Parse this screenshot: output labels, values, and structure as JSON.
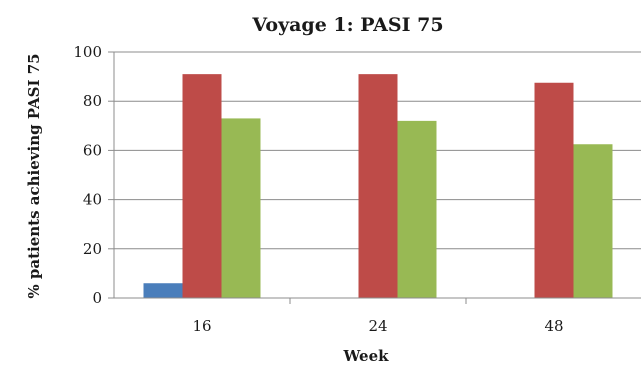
{
  "chart_data": {
    "type": "bar",
    "title": "Voyage 1: PASI 75",
    "xlabel": "Week",
    "ylabel": "% patients achieving PASI 75",
    "categories": [
      "16",
      "24",
      "48"
    ],
    "ylim": [
      0,
      100
    ],
    "yticks": [
      0,
      20,
      40,
      60,
      80,
      100
    ],
    "grid": true,
    "series": [
      {
        "values": [
          6,
          0,
          0
        ],
        "color": "#4a7ebb"
      },
      {
        "values": [
          91,
          91,
          87.5
        ],
        "color": "#be4b48"
      },
      {
        "values": [
          73,
          72,
          62.5
        ],
        "color": "#98b954"
      }
    ]
  }
}
